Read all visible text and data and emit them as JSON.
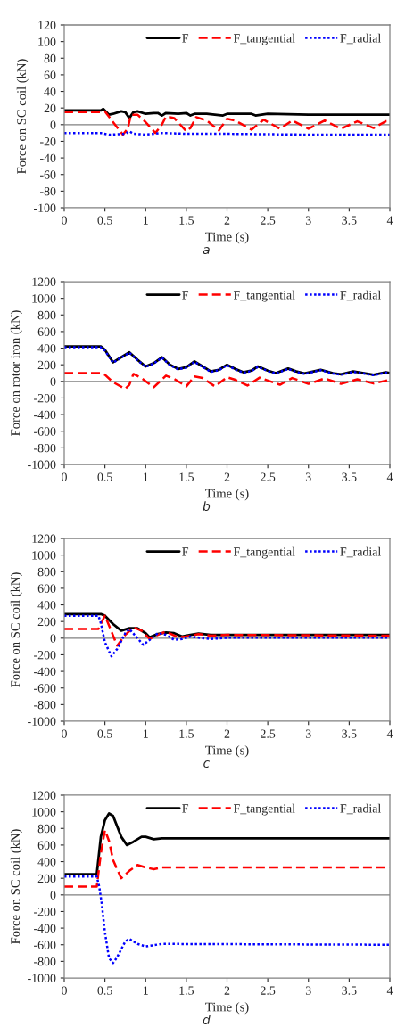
{
  "chart_data": [
    {
      "type": "line",
      "xlabel": "Time (s)",
      "ylabel": "Force on SC coil (kN)",
      "annotations": [
        "a"
      ],
      "xlim": [
        0,
        4
      ],
      "xticks": [
        0,
        0.5,
        1,
        1.5,
        2,
        2.5,
        3,
        3.5,
        4
      ],
      "ylim": [
        -100,
        120
      ],
      "yticks": [
        -100,
        -80,
        -60,
        -40,
        -20,
        0,
        20,
        40,
        60,
        80,
        100,
        120
      ],
      "legend": "top right",
      "ref_lines": [
        {
          "axis": "y",
          "value": 0,
          "color": "#808080"
        }
      ],
      "series": [
        {
          "name": "F",
          "color": "#000000",
          "line_style": "solid",
          "x": [
            0,
            0.45,
            0.48,
            0.55,
            0.6,
            0.7,
            0.75,
            0.8,
            0.85,
            0.9,
            1.0,
            1.1,
            1.15,
            1.2,
            1.25,
            1.4,
            1.5,
            1.55,
            1.6,
            1.75,
            1.95,
            2.0,
            2.3,
            2.35,
            2.5,
            3,
            3.5,
            4
          ],
          "values": [
            17,
            17,
            19,
            12,
            13,
            16,
            15,
            8,
            15,
            16,
            13,
            14,
            14,
            11,
            14,
            13,
            14,
            11,
            13,
            13,
            11,
            13,
            13,
            11,
            13,
            12,
            12,
            12
          ]
        },
        {
          "name": "F_tangential",
          "color": "#ff0000",
          "line_style": "dashed",
          "x": [
            0,
            0.45,
            0.5,
            0.6,
            0.72,
            0.78,
            0.82,
            0.9,
            1.0,
            1.12,
            1.2,
            1.25,
            1.35,
            1.5,
            1.55,
            1.62,
            1.75,
            1.9,
            2.0,
            2.1,
            2.3,
            2.45,
            2.65,
            2.8,
            3.0,
            3.2,
            3.4,
            3.6,
            3.8,
            3.95,
            4
          ],
          "values": [
            15,
            15,
            16,
            3,
            -12,
            -5,
            12,
            12,
            3,
            -10,
            0,
            10,
            8,
            -8,
            -4,
            9,
            5,
            -7,
            7,
            5,
            -6,
            6,
            -5,
            5,
            -5,
            5,
            -5,
            4,
            -4,
            4,
            4
          ]
        },
        {
          "name": "F_radial",
          "color": "#0000ff",
          "line_style": "dotted",
          "x": [
            0,
            0.45,
            0.55,
            0.75,
            0.8,
            0.85,
            1.0,
            1.2,
            1.5,
            2,
            3,
            4
          ],
          "values": [
            -10,
            -10,
            -12,
            -11,
            -8,
            -11,
            -12,
            -10,
            -11,
            -11,
            -12,
            -12
          ]
        }
      ]
    },
    {
      "type": "line",
      "xlabel": "Time (s)",
      "ylabel": "Force on rotor iron (kN)",
      "annotations": [
        "b"
      ],
      "xlim": [
        0,
        4
      ],
      "xticks": [
        0,
        0.5,
        1,
        1.5,
        2,
        2.5,
        3,
        3.5,
        4
      ],
      "ylim": [
        -1000,
        1200
      ],
      "yticks": [
        -1000,
        -800,
        -600,
        -400,
        -200,
        0,
        200,
        400,
        600,
        800,
        1000,
        1200
      ],
      "legend": "top right",
      "ref_lines": [
        {
          "axis": "y",
          "value": 0,
          "color": "#808080"
        }
      ],
      "series": [
        {
          "name": "F",
          "color": "#000000",
          "line_style": "solid",
          "x": [
            0,
            0.45,
            0.5,
            0.6,
            0.7,
            0.8,
            0.9,
            1.0,
            1.1,
            1.2,
            1.3,
            1.4,
            1.5,
            1.6,
            1.7,
            1.8,
            1.9,
            2.0,
            2.1,
            2.2,
            2.3,
            2.38,
            2.5,
            2.6,
            2.75,
            2.85,
            2.95,
            3.15,
            3.3,
            3.4,
            3.55,
            3.65,
            3.8,
            3.95,
            4
          ],
          "values": [
            420,
            420,
            380,
            230,
            290,
            350,
            260,
            180,
            220,
            290,
            200,
            150,
            170,
            240,
            180,
            120,
            140,
            200,
            150,
            110,
            130,
            180,
            130,
            100,
            155,
            120,
            95,
            140,
            100,
            85,
            120,
            105,
            80,
            110,
            100
          ]
        },
        {
          "name": "F_tangential",
          "color": "#ff0000",
          "line_style": "dashed",
          "x": [
            0,
            0.45,
            0.5,
            0.6,
            0.75,
            0.8,
            0.85,
            0.95,
            1.1,
            1.25,
            1.35,
            1.5,
            1.6,
            1.7,
            1.85,
            2.0,
            2.1,
            2.25,
            2.4,
            2.65,
            2.8,
            3.0,
            3.2,
            3.4,
            3.6,
            3.8,
            4
          ],
          "values": [
            100,
            100,
            80,
            -10,
            -90,
            -40,
            90,
            40,
            -70,
            70,
            30,
            -60,
            60,
            40,
            -60,
            50,
            20,
            -50,
            45,
            -40,
            40,
            -30,
            35,
            -30,
            25,
            -25,
            20
          ]
        },
        {
          "name": "F_radial",
          "color": "#0000ff",
          "line_style": "dotted",
          "x": [
            0,
            0.45,
            0.5,
            0.6,
            0.7,
            0.8,
            0.9,
            1.0,
            1.1,
            1.2,
            1.3,
            1.4,
            1.5,
            1.6,
            1.7,
            1.8,
            1.9,
            2.0,
            2.1,
            2.2,
            2.3,
            2.38,
            2.5,
            2.6,
            2.75,
            2.85,
            2.95,
            3.15,
            3.3,
            3.4,
            3.55,
            3.65,
            3.8,
            3.95,
            4
          ],
          "values": [
            410,
            410,
            370,
            225,
            285,
            345,
            255,
            175,
            215,
            285,
            195,
            145,
            165,
            235,
            175,
            115,
            135,
            195,
            145,
            105,
            125,
            175,
            125,
            95,
            150,
            115,
            90,
            135,
            95,
            80,
            115,
            100,
            75,
            105,
            95
          ]
        }
      ]
    },
    {
      "type": "line",
      "xlabel": "Time (s)",
      "ylabel": "Force on SC coil (kN)",
      "annotations": [
        "c"
      ],
      "xlim": [
        0,
        4
      ],
      "xticks": [
        0,
        0.5,
        1,
        1.5,
        2,
        2.5,
        3,
        3.5,
        4
      ],
      "ylim": [
        -1000,
        1200
      ],
      "yticks": [
        -1000,
        -800,
        -600,
        -400,
        -200,
        0,
        200,
        400,
        600,
        800,
        1000,
        1200
      ],
      "legend": "top right",
      "ref_lines": [
        {
          "axis": "y",
          "value": 0,
          "color": "#808080"
        }
      ],
      "series": [
        {
          "name": "F",
          "color": "#000000",
          "line_style": "solid",
          "x": [
            0,
            0.45,
            0.5,
            0.6,
            0.7,
            0.8,
            0.9,
            1.0,
            1.05,
            1.15,
            1.25,
            1.35,
            1.45,
            1.55,
            1.65,
            1.8,
            2,
            4
          ],
          "values": [
            290,
            290,
            270,
            170,
            90,
            120,
            120,
            60,
            10,
            50,
            70,
            60,
            20,
            40,
            55,
            40,
            40,
            40
          ]
        },
        {
          "name": "F_tangential",
          "color": "#ff0000",
          "line_style": "dashed",
          "x": [
            0,
            0.42,
            0.5,
            0.58,
            0.65,
            0.75,
            0.85,
            0.95,
            1.05,
            1.15,
            1.25,
            1.4,
            1.5,
            1.65,
            1.8,
            2,
            4
          ],
          "values": [
            110,
            110,
            270,
            80,
            -90,
            40,
            130,
            90,
            -10,
            40,
            80,
            10,
            20,
            50,
            30,
            40,
            30
          ]
        },
        {
          "name": "F_radial",
          "color": "#0000ff",
          "line_style": "dotted",
          "x": [
            0,
            0.42,
            0.45,
            0.5,
            0.58,
            0.65,
            0.75,
            0.8,
            0.9,
            0.97,
            1.05,
            1.15,
            1.25,
            1.35,
            1.45,
            1.55,
            1.7,
            1.8,
            2,
            4
          ],
          "values": [
            270,
            270,
            180,
            -50,
            -220,
            -130,
            60,
            110,
            0,
            -80,
            -20,
            60,
            40,
            -20,
            -10,
            20,
            0,
            -10,
            5,
            5
          ]
        }
      ]
    },
    {
      "type": "line",
      "xlabel": "Time (s)",
      "ylabel": "Force on SC coil (kN)",
      "annotations": [
        "d"
      ],
      "xlim": [
        0,
        4
      ],
      "xticks": [
        0,
        0.5,
        1,
        1.5,
        2,
        2.5,
        3,
        3.5,
        4
      ],
      "ylim": [
        -1000,
        1200
      ],
      "yticks": [
        -1000,
        -800,
        -600,
        -400,
        -200,
        0,
        200,
        400,
        600,
        800,
        1000,
        1200
      ],
      "legend": "top right",
      "ref_lines": [
        {
          "axis": "y",
          "value": 0,
          "color": "#808080"
        }
      ],
      "series": [
        {
          "name": "F",
          "color": "#000000",
          "line_style": "solid",
          "x": [
            0,
            0.4,
            0.45,
            0.5,
            0.55,
            0.6,
            0.7,
            0.77,
            0.85,
            0.95,
            1.0,
            1.1,
            1.2,
            4
          ],
          "values": [
            250,
            250,
            700,
            900,
            980,
            950,
            700,
            600,
            640,
            700,
            700,
            670,
            680,
            680
          ]
        },
        {
          "name": "F_tangential",
          "color": "#ff0000",
          "line_style": "dashed",
          "x": [
            0,
            0.4,
            0.45,
            0.5,
            0.55,
            0.6,
            0.7,
            0.8,
            0.9,
            1.0,
            1.1,
            1.2,
            4
          ],
          "values": [
            100,
            100,
            500,
            780,
            650,
            420,
            200,
            290,
            360,
            330,
            310,
            330,
            330
          ]
        },
        {
          "name": "F_radial",
          "color": "#0000ff",
          "line_style": "dotted",
          "x": [
            0,
            0.4,
            0.43,
            0.46,
            0.5,
            0.55,
            0.6,
            0.65,
            0.75,
            0.8,
            0.9,
            1.0,
            1.2,
            4
          ],
          "values": [
            220,
            220,
            100,
            -100,
            -450,
            -760,
            -820,
            -750,
            -560,
            -530,
            -590,
            -620,
            -590,
            -600
          ]
        }
      ]
    }
  ]
}
